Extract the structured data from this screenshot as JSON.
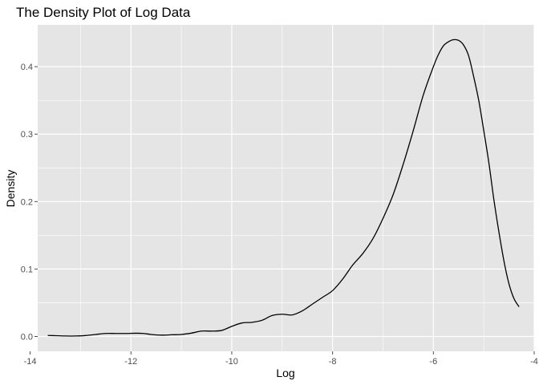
{
  "chart_data": {
    "type": "line",
    "title": "The Density Plot of Log Data",
    "xlabel": "Log",
    "ylabel": "Density",
    "xlim": [
      -13.85,
      -4.0
    ],
    "ylim": [
      -0.022,
      0.462
    ],
    "x_ticks": [
      -14,
      -12,
      -10,
      -8,
      -6,
      -4
    ],
    "x_tick_labels": [
      "-14",
      "-12",
      "-10",
      "-8",
      "-6",
      "-4"
    ],
    "y_ticks": [
      0.0,
      0.1,
      0.2,
      0.3,
      0.4
    ],
    "y_tick_labels": [
      "0.0",
      "0.1",
      "0.2",
      "0.3",
      "0.4"
    ],
    "grid": true,
    "legend": "none",
    "colors": {
      "panel_bg": "#e5e5e5",
      "grid": "#ffffff",
      "line": "#000000",
      "tick": "#4d4d4d"
    },
    "series": [
      {
        "x": [
          -13.65,
          -13.5,
          -13.3,
          -13.1,
          -12.9,
          -12.7,
          -12.5,
          -12.3,
          -12.1,
          -11.9,
          -11.75,
          -11.6,
          -11.4,
          -11.2,
          -11.0,
          -10.8,
          -10.6,
          -10.4,
          -10.2,
          -10.0,
          -9.8,
          -9.6,
          -9.4,
          -9.2,
          -9.0,
          -8.8,
          -8.6,
          -8.4,
          -8.2,
          -8.0,
          -7.8,
          -7.6,
          -7.4,
          -7.2,
          -7.0,
          -6.8,
          -6.6,
          -6.4,
          -6.2,
          -6.0,
          -5.9,
          -5.8,
          -5.7,
          -5.6,
          -5.5,
          -5.4,
          -5.3,
          -5.2,
          -5.1,
          -5.0,
          -4.9,
          -4.8,
          -4.7,
          -4.6,
          -4.5,
          -4.4,
          -4.3
        ],
        "values": [
          0.0015,
          0.0012,
          0.0007,
          0.0007,
          0.0014,
          0.003,
          0.0045,
          0.0045,
          0.0045,
          0.0048,
          0.0045,
          0.003,
          0.002,
          0.0025,
          0.003,
          0.005,
          0.008,
          0.008,
          0.009,
          0.015,
          0.02,
          0.021,
          0.024,
          0.031,
          0.033,
          0.032,
          0.038,
          0.048,
          0.058,
          0.068,
          0.085,
          0.106,
          0.123,
          0.145,
          0.175,
          0.21,
          0.255,
          0.305,
          0.358,
          0.4,
          0.418,
          0.431,
          0.437,
          0.44,
          0.439,
          0.432,
          0.416,
          0.385,
          0.35,
          0.305,
          0.258,
          0.203,
          0.155,
          0.112,
          0.078,
          0.056,
          0.044
        ]
      }
    ]
  }
}
